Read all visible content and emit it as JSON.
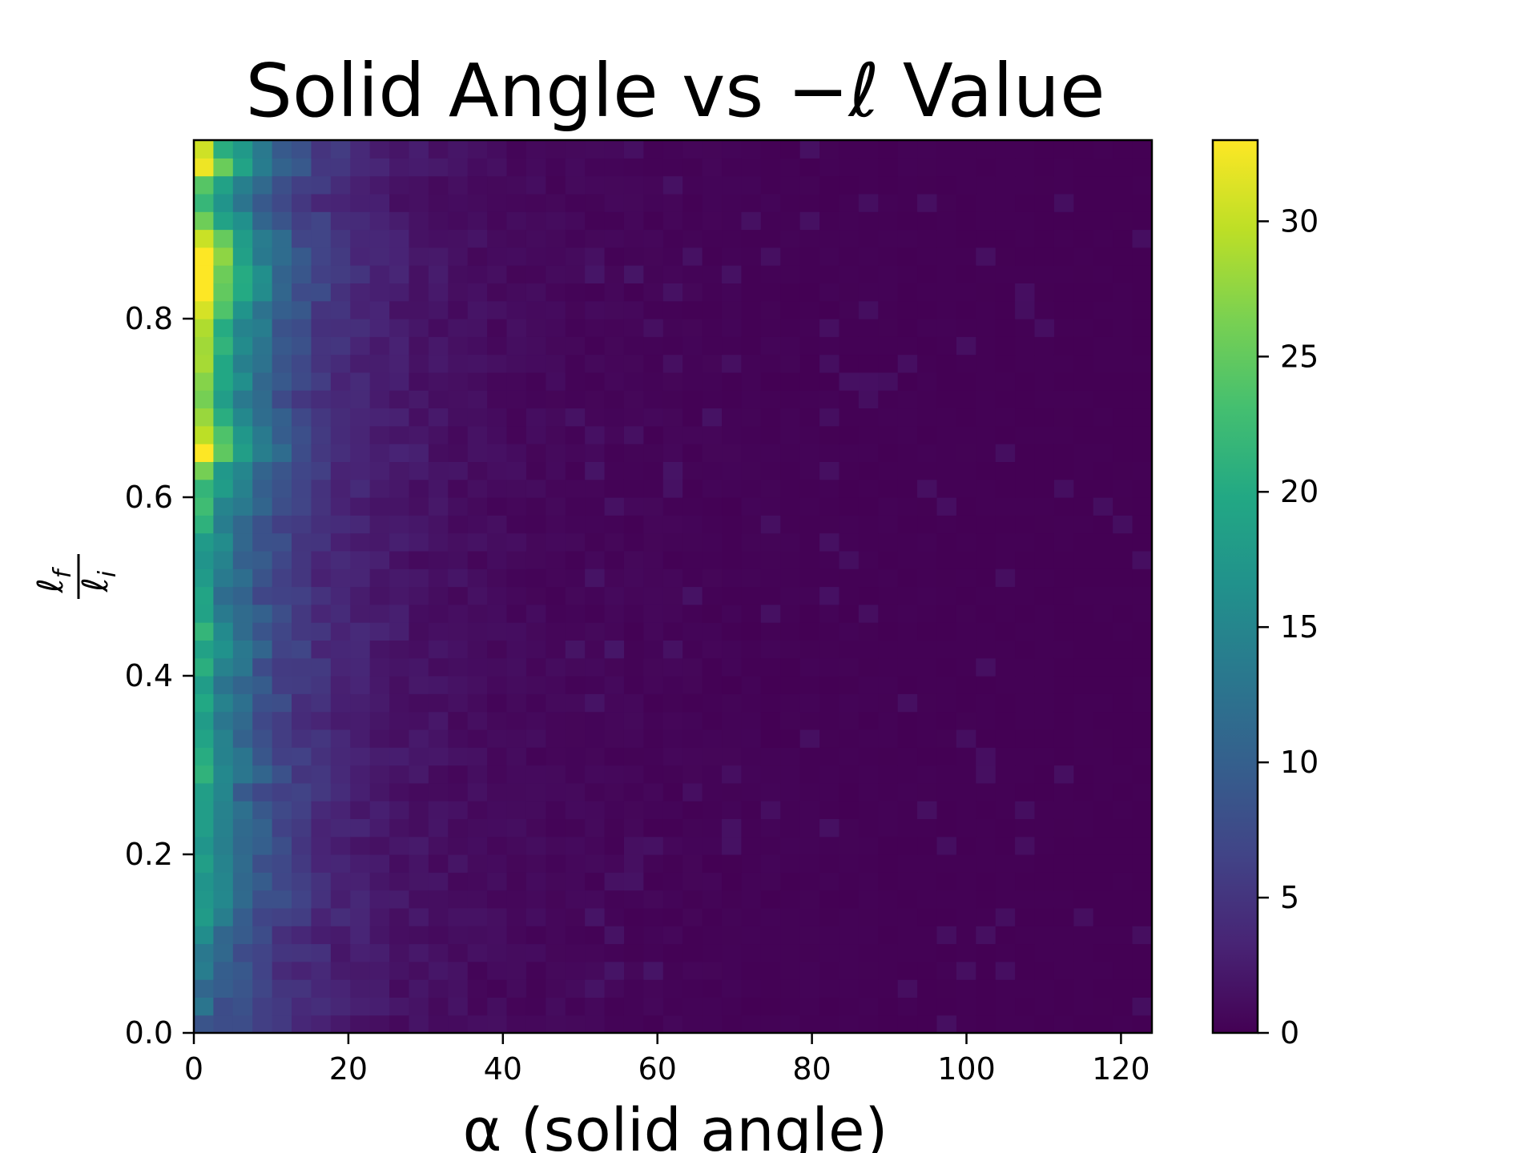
{
  "chart_data": {
    "type": "heatmap",
    "title": "Solid Angle vs −ℓ Value",
    "xlabel": "α (solid angle)",
    "ylabel": {
      "numerator": "ℓ",
      "numerator_sub": "f",
      "denominator": "ℓ",
      "denominator_sub": "i"
    },
    "x_range": [
      0,
      124
    ],
    "y_range": [
      0,
      1.0
    ],
    "x_ticks": [
      "0",
      "20",
      "40",
      "60",
      "80",
      "100",
      "120"
    ],
    "y_ticks": [
      "0.0",
      "0.2",
      "0.4",
      "0.6",
      "0.8"
    ],
    "colorbar": {
      "range": [
        0,
        33
      ],
      "ticks": [
        "0",
        "5",
        "10",
        "15",
        "20",
        "25",
        "30"
      ],
      "colormap": "viridis"
    },
    "bins": {
      "x_count": 49,
      "y_count": 50,
      "x_min": 0,
      "x_max": 124,
      "y_min": 0,
      "y_max": 1.0
    },
    "column_profile": {
      "description_free_counts_near_x0": [
        26,
        28,
        20,
        17,
        24,
        28,
        31,
        33,
        30,
        27,
        25,
        23,
        24,
        22,
        21,
        26,
        28,
        30,
        22,
        20,
        18,
        17,
        16,
        15,
        15,
        14,
        16,
        18,
        17,
        16,
        15,
        15,
        14,
        15,
        16,
        17,
        15,
        16,
        16,
        15,
        16,
        15,
        15,
        13,
        12,
        11,
        10,
        9,
        8,
        7
      ]
    },
    "colors": {
      "viridis_low": "#440154",
      "viridis_mid": "#21918c",
      "viridis_high": "#fde725"
    }
  }
}
